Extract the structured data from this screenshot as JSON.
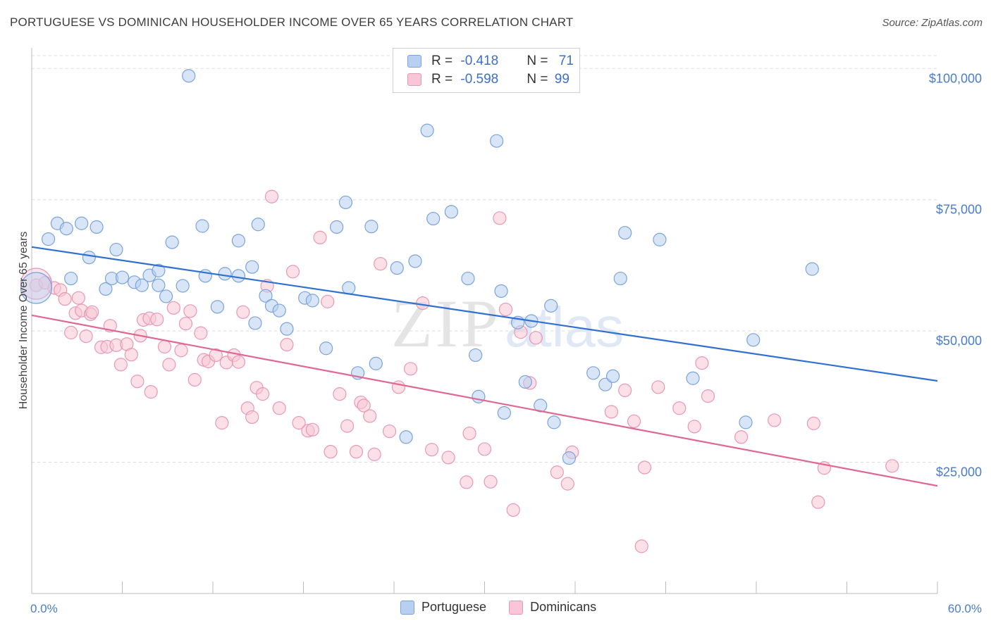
{
  "title": "PORTUGUESE VS DOMINICAN HOUSEHOLDER INCOME OVER 65 YEARS CORRELATION CHART",
  "source": "Source: ZipAtlas.com",
  "watermark": {
    "zip": "ZIP",
    "atlas": "atlas"
  },
  "legend": {
    "rows": [
      {
        "r_label": "R = ",
        "r_value": "-0.418",
        "n_label": "N = ",
        "n_value": "71"
      },
      {
        "r_label": "R = ",
        "r_value": "-0.598",
        "n_label": "N = ",
        "n_value": "99"
      }
    ]
  },
  "bottom_legend": {
    "portuguese": "Portuguese",
    "dominicans": "Dominicans"
  },
  "colors": {
    "portuguese_fill": "#b8d0f0",
    "portuguese_stroke": "#7aa3dc",
    "portuguese_line": "#3070d0",
    "dominican_fill": "#f8c6d6",
    "dominican_stroke": "#e898b4",
    "dominican_line": "#e06890",
    "tick_text": "#4a7cc8",
    "grid": "#dcdcdc"
  },
  "chart_data": {
    "type": "scatter",
    "ylabel": "Householder Income Over 65 years",
    "xlim": [
      0,
      60
    ],
    "ylim": [
      0,
      105000
    ],
    "x_tick_labels": [
      {
        "value": 0,
        "label": "0.0%"
      },
      {
        "value": 60,
        "label": "60.0%"
      }
    ],
    "y_ticks": [
      {
        "value": 25000,
        "label": "$25,000"
      },
      {
        "value": 50000,
        "label": "$50,000"
      },
      {
        "value": 75000,
        "label": "$75,000"
      },
      {
        "value": 100000,
        "label": "$100,000"
      }
    ],
    "grid": true,
    "series": [
      {
        "name": "Portuguese",
        "trend": {
          "x": [
            0,
            60
          ],
          "y": [
            66000,
            40500
          ]
        },
        "points": [
          [
            1.1,
            67500
          ],
          [
            1.7,
            70500
          ],
          [
            2.3,
            69500
          ],
          [
            3.3,
            70500
          ],
          [
            4.3,
            69800
          ],
          [
            2.6,
            60000
          ],
          [
            4.9,
            58000
          ],
          [
            5.3,
            60000
          ],
          [
            5.6,
            65500
          ],
          [
            6.8,
            59300
          ],
          [
            7.3,
            58700
          ],
          [
            7.8,
            60600
          ],
          [
            8.4,
            58700
          ],
          [
            8.9,
            56600
          ],
          [
            9.3,
            66900
          ],
          [
            10.0,
            58600
          ],
          [
            10.4,
            98600
          ],
          [
            11.3,
            70000
          ],
          [
            11.5,
            60500
          ],
          [
            12.3,
            54600
          ],
          [
            12.8,
            60900
          ],
          [
            13.7,
            67200
          ],
          [
            13.7,
            60500
          ],
          [
            14.8,
            51500
          ],
          [
            15.0,
            70300
          ],
          [
            15.5,
            56700
          ],
          [
            15.9,
            54800
          ],
          [
            16.4,
            53900
          ],
          [
            16.9,
            50400
          ],
          [
            18.1,
            56300
          ],
          [
            18.6,
            55800
          ],
          [
            19.5,
            46700
          ],
          [
            20.2,
            69800
          ],
          [
            20.8,
            74500
          ],
          [
            21.6,
            42000
          ],
          [
            22.5,
            69900
          ],
          [
            22.8,
            43800
          ],
          [
            24.2,
            62000
          ],
          [
            24.8,
            29800
          ],
          [
            25.4,
            63300
          ],
          [
            26.2,
            88200
          ],
          [
            26.6,
            71400
          ],
          [
            27.8,
            72700
          ],
          [
            28.9,
            60000
          ],
          [
            29.4,
            45400
          ],
          [
            29.6,
            37500
          ],
          [
            30.8,
            86200
          ],
          [
            31.1,
            57600
          ],
          [
            31.3,
            34400
          ],
          [
            32.2,
            51600
          ],
          [
            32.7,
            40300
          ],
          [
            33.1,
            51900
          ],
          [
            33.7,
            35800
          ],
          [
            34.4,
            54800
          ],
          [
            34.6,
            32600
          ],
          [
            35.6,
            25800
          ],
          [
            37.2,
            42000
          ],
          [
            38.0,
            39800
          ],
          [
            38.5,
            41400
          ],
          [
            39.0,
            60000
          ],
          [
            39.3,
            68700
          ],
          [
            41.6,
            67400
          ],
          [
            43.8,
            41000
          ],
          [
            47.3,
            32600
          ],
          [
            47.8,
            48300
          ],
          [
            51.7,
            61800
          ],
          [
            6.0,
            60200
          ],
          [
            8.4,
            61500
          ],
          [
            3.8,
            64000
          ],
          [
            21.0,
            58200
          ],
          [
            14.6,
            62200
          ]
        ]
      },
      {
        "name": "Dominicans",
        "trend": {
          "x": [
            0,
            60
          ],
          "y": [
            53000,
            20500
          ]
        },
        "points": [
          [
            0.3,
            58700
          ],
          [
            0.9,
            59200
          ],
          [
            1.5,
            58200
          ],
          [
            1.9,
            57800
          ],
          [
            2.2,
            56100
          ],
          [
            2.6,
            49700
          ],
          [
            2.9,
            53400
          ],
          [
            3.3,
            53900
          ],
          [
            3.6,
            49000
          ],
          [
            3.9,
            53200
          ],
          [
            4.0,
            53600
          ],
          [
            4.6,
            46900
          ],
          [
            5.0,
            47000
          ],
          [
            5.2,
            51000
          ],
          [
            5.6,
            47300
          ],
          [
            5.9,
            43600
          ],
          [
            6.3,
            47500
          ],
          [
            6.6,
            45500
          ],
          [
            7.0,
            40400
          ],
          [
            7.4,
            52100
          ],
          [
            7.8,
            52400
          ],
          [
            7.9,
            38400
          ],
          [
            8.3,
            52200
          ],
          [
            8.8,
            47000
          ],
          [
            9.1,
            43600
          ],
          [
            9.4,
            54400
          ],
          [
            9.9,
            46300
          ],
          [
            10.2,
            51400
          ],
          [
            10.5,
            53800
          ],
          [
            10.8,
            40700
          ],
          [
            11.2,
            49600
          ],
          [
            11.4,
            44500
          ],
          [
            11.7,
            44200
          ],
          [
            12.2,
            45400
          ],
          [
            12.6,
            32500
          ],
          [
            12.9,
            44000
          ],
          [
            13.4,
            45400
          ],
          [
            13.7,
            44100
          ],
          [
            14.0,
            53600
          ],
          [
            14.3,
            35300
          ],
          [
            14.6,
            33600
          ],
          [
            14.9,
            39200
          ],
          [
            15.3,
            38000
          ],
          [
            15.6,
            58600
          ],
          [
            15.9,
            75600
          ],
          [
            16.4,
            35300
          ],
          [
            16.9,
            47400
          ],
          [
            17.3,
            61300
          ],
          [
            17.7,
            32500
          ],
          [
            18.3,
            31000
          ],
          [
            18.6,
            31200
          ],
          [
            19.1,
            67800
          ],
          [
            19.6,
            55600
          ],
          [
            19.8,
            27000
          ],
          [
            20.4,
            38000
          ],
          [
            20.9,
            31900
          ],
          [
            21.5,
            27000
          ],
          [
            21.8,
            36400
          ],
          [
            22.0,
            35800
          ],
          [
            22.4,
            33800
          ],
          [
            22.7,
            26500
          ],
          [
            23.1,
            62800
          ],
          [
            23.7,
            30900
          ],
          [
            24.3,
            39300
          ],
          [
            25.1,
            42800
          ],
          [
            25.9,
            55300
          ],
          [
            26.5,
            27400
          ],
          [
            27.6,
            25900
          ],
          [
            28.8,
            21200
          ],
          [
            29.0,
            30500
          ],
          [
            30.0,
            27500
          ],
          [
            30.4,
            21300
          ],
          [
            31.0,
            71500
          ],
          [
            31.4,
            54100
          ],
          [
            31.9,
            15900
          ],
          [
            32.4,
            49800
          ],
          [
            33.0,
            40100
          ],
          [
            33.4,
            48700
          ],
          [
            34.8,
            23100
          ],
          [
            35.5,
            20900
          ],
          [
            35.8,
            26900
          ],
          [
            38.4,
            34600
          ],
          [
            39.3,
            38700
          ],
          [
            39.9,
            32800
          ],
          [
            40.6,
            24000
          ],
          [
            40.4,
            9000
          ],
          [
            41.5,
            39300
          ],
          [
            42.9,
            35300
          ],
          [
            43.9,
            31800
          ],
          [
            44.4,
            43900
          ],
          [
            44.8,
            37600
          ],
          [
            47.0,
            29800
          ],
          [
            49.2,
            33000
          ],
          [
            51.8,
            32400
          ],
          [
            52.1,
            17400
          ],
          [
            52.5,
            23900
          ],
          [
            57.0,
            24300
          ],
          [
            3.1,
            56300
          ],
          [
            7.2,
            49100
          ]
        ]
      }
    ]
  }
}
